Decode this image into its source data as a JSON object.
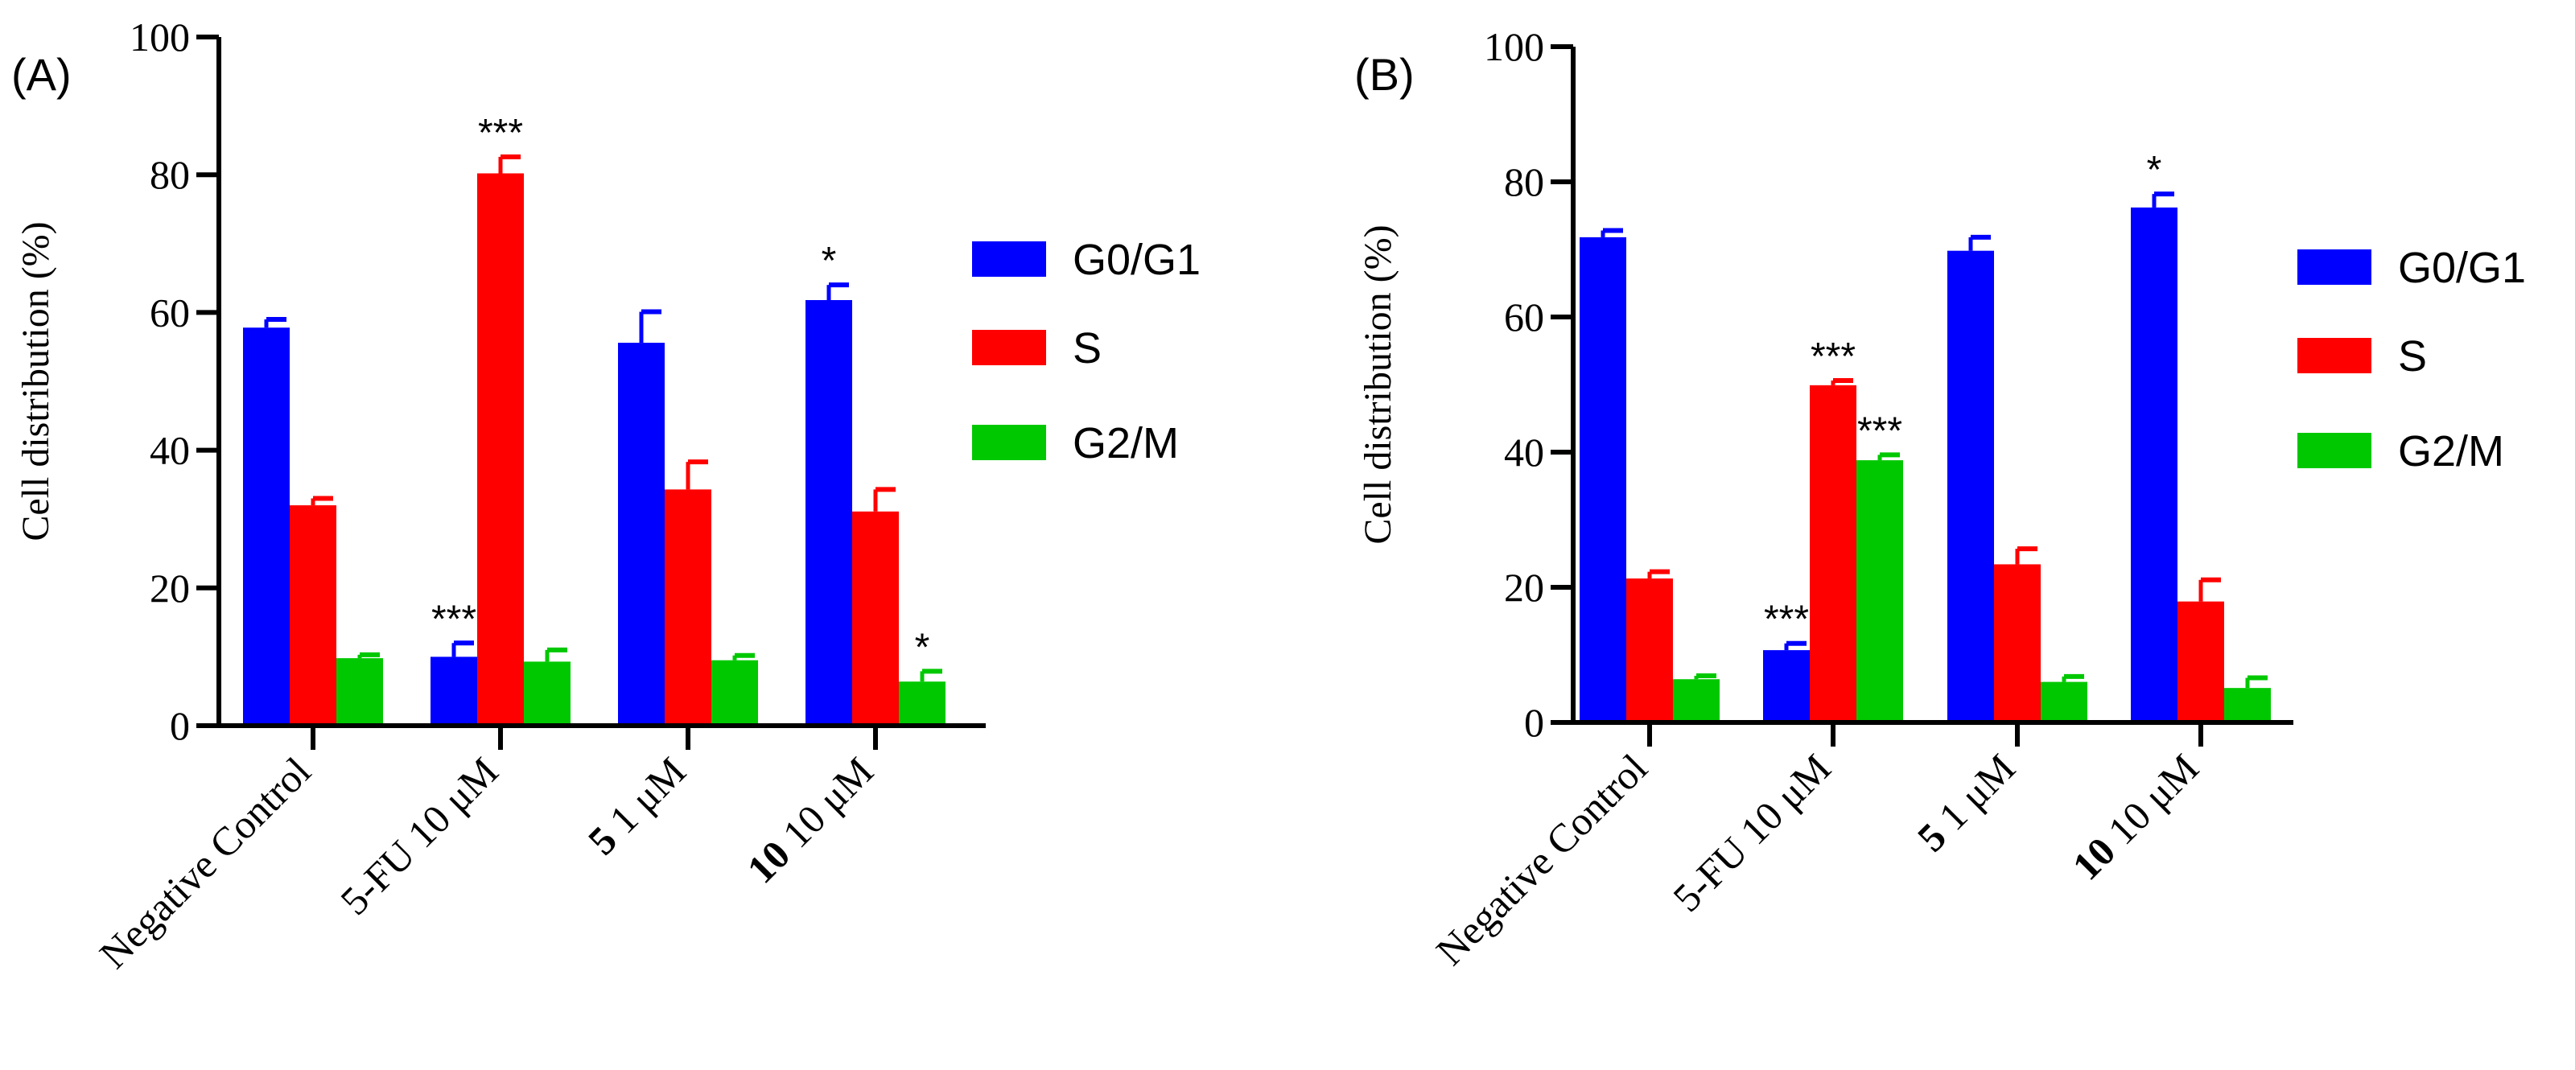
{
  "chart_data": [
    {
      "panel_label": "(A)",
      "type": "bar",
      "ylabel": "Cell distribution (%)",
      "ylim": [
        0,
        100
      ],
      "yticks": [
        "0",
        "20",
        "40",
        "60",
        "80",
        "100"
      ],
      "categories": [
        {
          "bold": "",
          "rest": "Negative Control"
        },
        {
          "bold": "",
          "rest": "5-FU 10 μM"
        },
        {
          "bold": "5",
          "rest": " 1 μM"
        },
        {
          "bold": "10",
          "rest": " 10 μM"
        }
      ],
      "series": [
        {
          "name": "G0/G1",
          "color": "#0000FF",
          "values": [
            57.8,
            10.0,
            55.6,
            61.8
          ],
          "errors": [
            1.2,
            2.0,
            4.5,
            2.2
          ],
          "annotations": [
            "",
            "***",
            "",
            "*"
          ]
        },
        {
          "name": "S",
          "color": "#FF0000",
          "values": [
            32.0,
            80.2,
            34.3,
            31.1
          ],
          "errors": [
            1.0,
            2.4,
            4.0,
            3.2
          ],
          "annotations": [
            "",
            "***",
            "",
            ""
          ]
        },
        {
          "name": "G2/M",
          "color": "#00C800",
          "values": [
            9.8,
            9.3,
            9.5,
            6.4
          ],
          "errors": [
            0.5,
            1.7,
            0.7,
            1.5
          ],
          "annotations": [
            "",
            "",
            "",
            "*"
          ]
        }
      ]
    },
    {
      "panel_label": "(B)",
      "type": "bar",
      "ylabel": "Cell distribution (%)",
      "ylim": [
        0,
        100
      ],
      "yticks": [
        "0",
        "20",
        "40",
        "60",
        "80",
        "100"
      ],
      "categories": [
        {
          "bold": "",
          "rest": "Negative Control"
        },
        {
          "bold": "",
          "rest": "5-FU 10 μM"
        },
        {
          "bold": "5",
          "rest": " 1 μM"
        },
        {
          "bold": "10",
          "rest": " 10 μM"
        }
      ],
      "series": [
        {
          "name": "G0/G1",
          "color": "#0000FF",
          "values": [
            71.8,
            10.7,
            69.8,
            76.2
          ],
          "errors": [
            1.0,
            1.0,
            2.0,
            2.0
          ],
          "annotations": [
            "",
            "***",
            "",
            "*"
          ]
        },
        {
          "name": "S",
          "color": "#FF0000",
          "values": [
            21.3,
            49.9,
            23.4,
            17.9
          ],
          "errors": [
            1.0,
            0.7,
            2.3,
            3.2
          ],
          "annotations": [
            "",
            "***",
            "",
            ""
          ]
        },
        {
          "name": "G2/M",
          "color": "#00C800",
          "values": [
            6.4,
            38.8,
            6.0,
            5.1
          ],
          "errors": [
            0.5,
            0.8,
            0.8,
            1.5
          ],
          "annotations": [
            "",
            "***",
            "",
            ""
          ]
        }
      ]
    }
  ]
}
